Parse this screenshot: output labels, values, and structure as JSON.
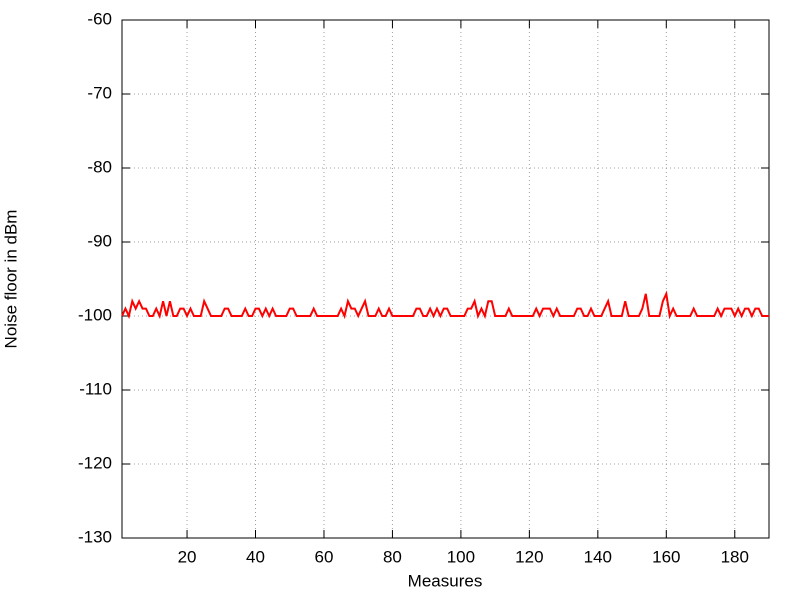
{
  "chart_data": {
    "type": "line",
    "xlabel": "Measures",
    "ylabel": "Noise floor in dBm",
    "x": [
      1,
      2,
      3,
      4,
      5,
      6,
      7,
      8,
      9,
      10,
      11,
      12,
      13,
      14,
      15,
      16,
      17,
      18,
      19,
      20,
      21,
      22,
      23,
      24,
      25,
      26,
      27,
      28,
      29,
      30,
      31,
      32,
      33,
      34,
      35,
      36,
      37,
      38,
      39,
      40,
      41,
      42,
      43,
      44,
      45,
      46,
      47,
      48,
      49,
      50,
      51,
      52,
      53,
      54,
      55,
      56,
      57,
      58,
      59,
      60,
      61,
      62,
      63,
      64,
      65,
      66,
      67,
      68,
      69,
      70,
      71,
      72,
      73,
      74,
      75,
      76,
      77,
      78,
      79,
      80,
      81,
      82,
      83,
      84,
      85,
      86,
      87,
      88,
      89,
      90,
      91,
      92,
      93,
      94,
      95,
      96,
      97,
      98,
      99,
      100,
      101,
      102,
      103,
      104,
      105,
      106,
      107,
      108,
      109,
      110,
      111,
      112,
      113,
      114,
      115,
      116,
      117,
      118,
      119,
      120,
      121,
      122,
      123,
      124,
      125,
      126,
      127,
      128,
      129,
      130,
      131,
      132,
      133,
      134,
      135,
      136,
      137,
      138,
      139,
      140,
      141,
      142,
      143,
      144,
      145,
      146,
      147,
      148,
      149,
      150,
      151,
      152,
      153,
      154,
      155,
      156,
      157,
      158,
      159,
      160,
      161,
      162,
      163,
      164,
      165,
      166,
      167,
      168,
      169,
      170,
      171,
      172,
      173,
      174,
      175,
      176,
      177,
      178,
      179,
      180,
      181,
      182,
      183,
      184,
      185,
      186,
      187,
      188,
      189,
      190
    ],
    "values": [
      -100,
      -99,
      -100,
      -98,
      -99,
      -98,
      -99,
      -99,
      -100,
      -100,
      -99,
      -100,
      -98,
      -100,
      -98,
      -100,
      -100,
      -99,
      -99,
      -100,
      -99,
      -100,
      -100,
      -100,
      -98,
      -99,
      -100,
      -100,
      -100,
      -100,
      -99,
      -99,
      -100,
      -100,
      -100,
      -100,
      -99,
      -100,
      -100,
      -99,
      -99,
      -100,
      -99,
      -100,
      -99,
      -100,
      -100,
      -100,
      -100,
      -99,
      -99,
      -100,
      -100,
      -100,
      -100,
      -100,
      -99,
      -100,
      -100,
      -100,
      -100,
      -100,
      -100,
      -100,
      -99,
      -100,
      -98,
      -99,
      -99,
      -100,
      -99,
      -98,
      -100,
      -100,
      -100,
      -99,
      -100,
      -100,
      -99,
      -100,
      -100,
      -100,
      -100,
      -100,
      -100,
      -100,
      -99,
      -99,
      -100,
      -100,
      -99,
      -100,
      -99,
      -100,
      -99,
      -99,
      -100,
      -100,
      -100,
      -100,
      -100,
      -99,
      -99,
      -98,
      -100,
      -99,
      -100,
      -98,
      -98,
      -100,
      -100,
      -100,
      -100,
      -99,
      -100,
      -100,
      -100,
      -100,
      -100,
      -100,
      -100,
      -99,
      -100,
      -99,
      -99,
      -99,
      -100,
      -99,
      -100,
      -100,
      -100,
      -100,
      -100,
      -99,
      -99,
      -100,
      -100,
      -99,
      -100,
      -100,
      -100,
      -99,
      -98,
      -100,
      -100,
      -100,
      -100,
      -98,
      -100,
      -100,
      -100,
      -100,
      -99,
      -97,
      -100,
      -100,
      -100,
      -100,
      -98,
      -97,
      -100,
      -99,
      -100,
      -100,
      -100,
      -100,
      -100,
      -99,
      -100,
      -100,
      -100,
      -100,
      -100,
      -100,
      -99,
      -100,
      -99,
      -99,
      -99,
      -100,
      -99,
      -100,
      -99,
      -99,
      -100,
      -99,
      -99,
      -100,
      -100,
      -100
    ],
    "color": "#ff0000",
    "xlim": [
      1,
      190
    ],
    "xticks": [
      20,
      40,
      60,
      80,
      100,
      120,
      140,
      160,
      180
    ],
    "ylim": [
      -130,
      -60
    ],
    "yticks": [
      -130,
      -120,
      -110,
      -100,
      -90,
      -80,
      -70,
      -60
    ],
    "grid": true
  }
}
